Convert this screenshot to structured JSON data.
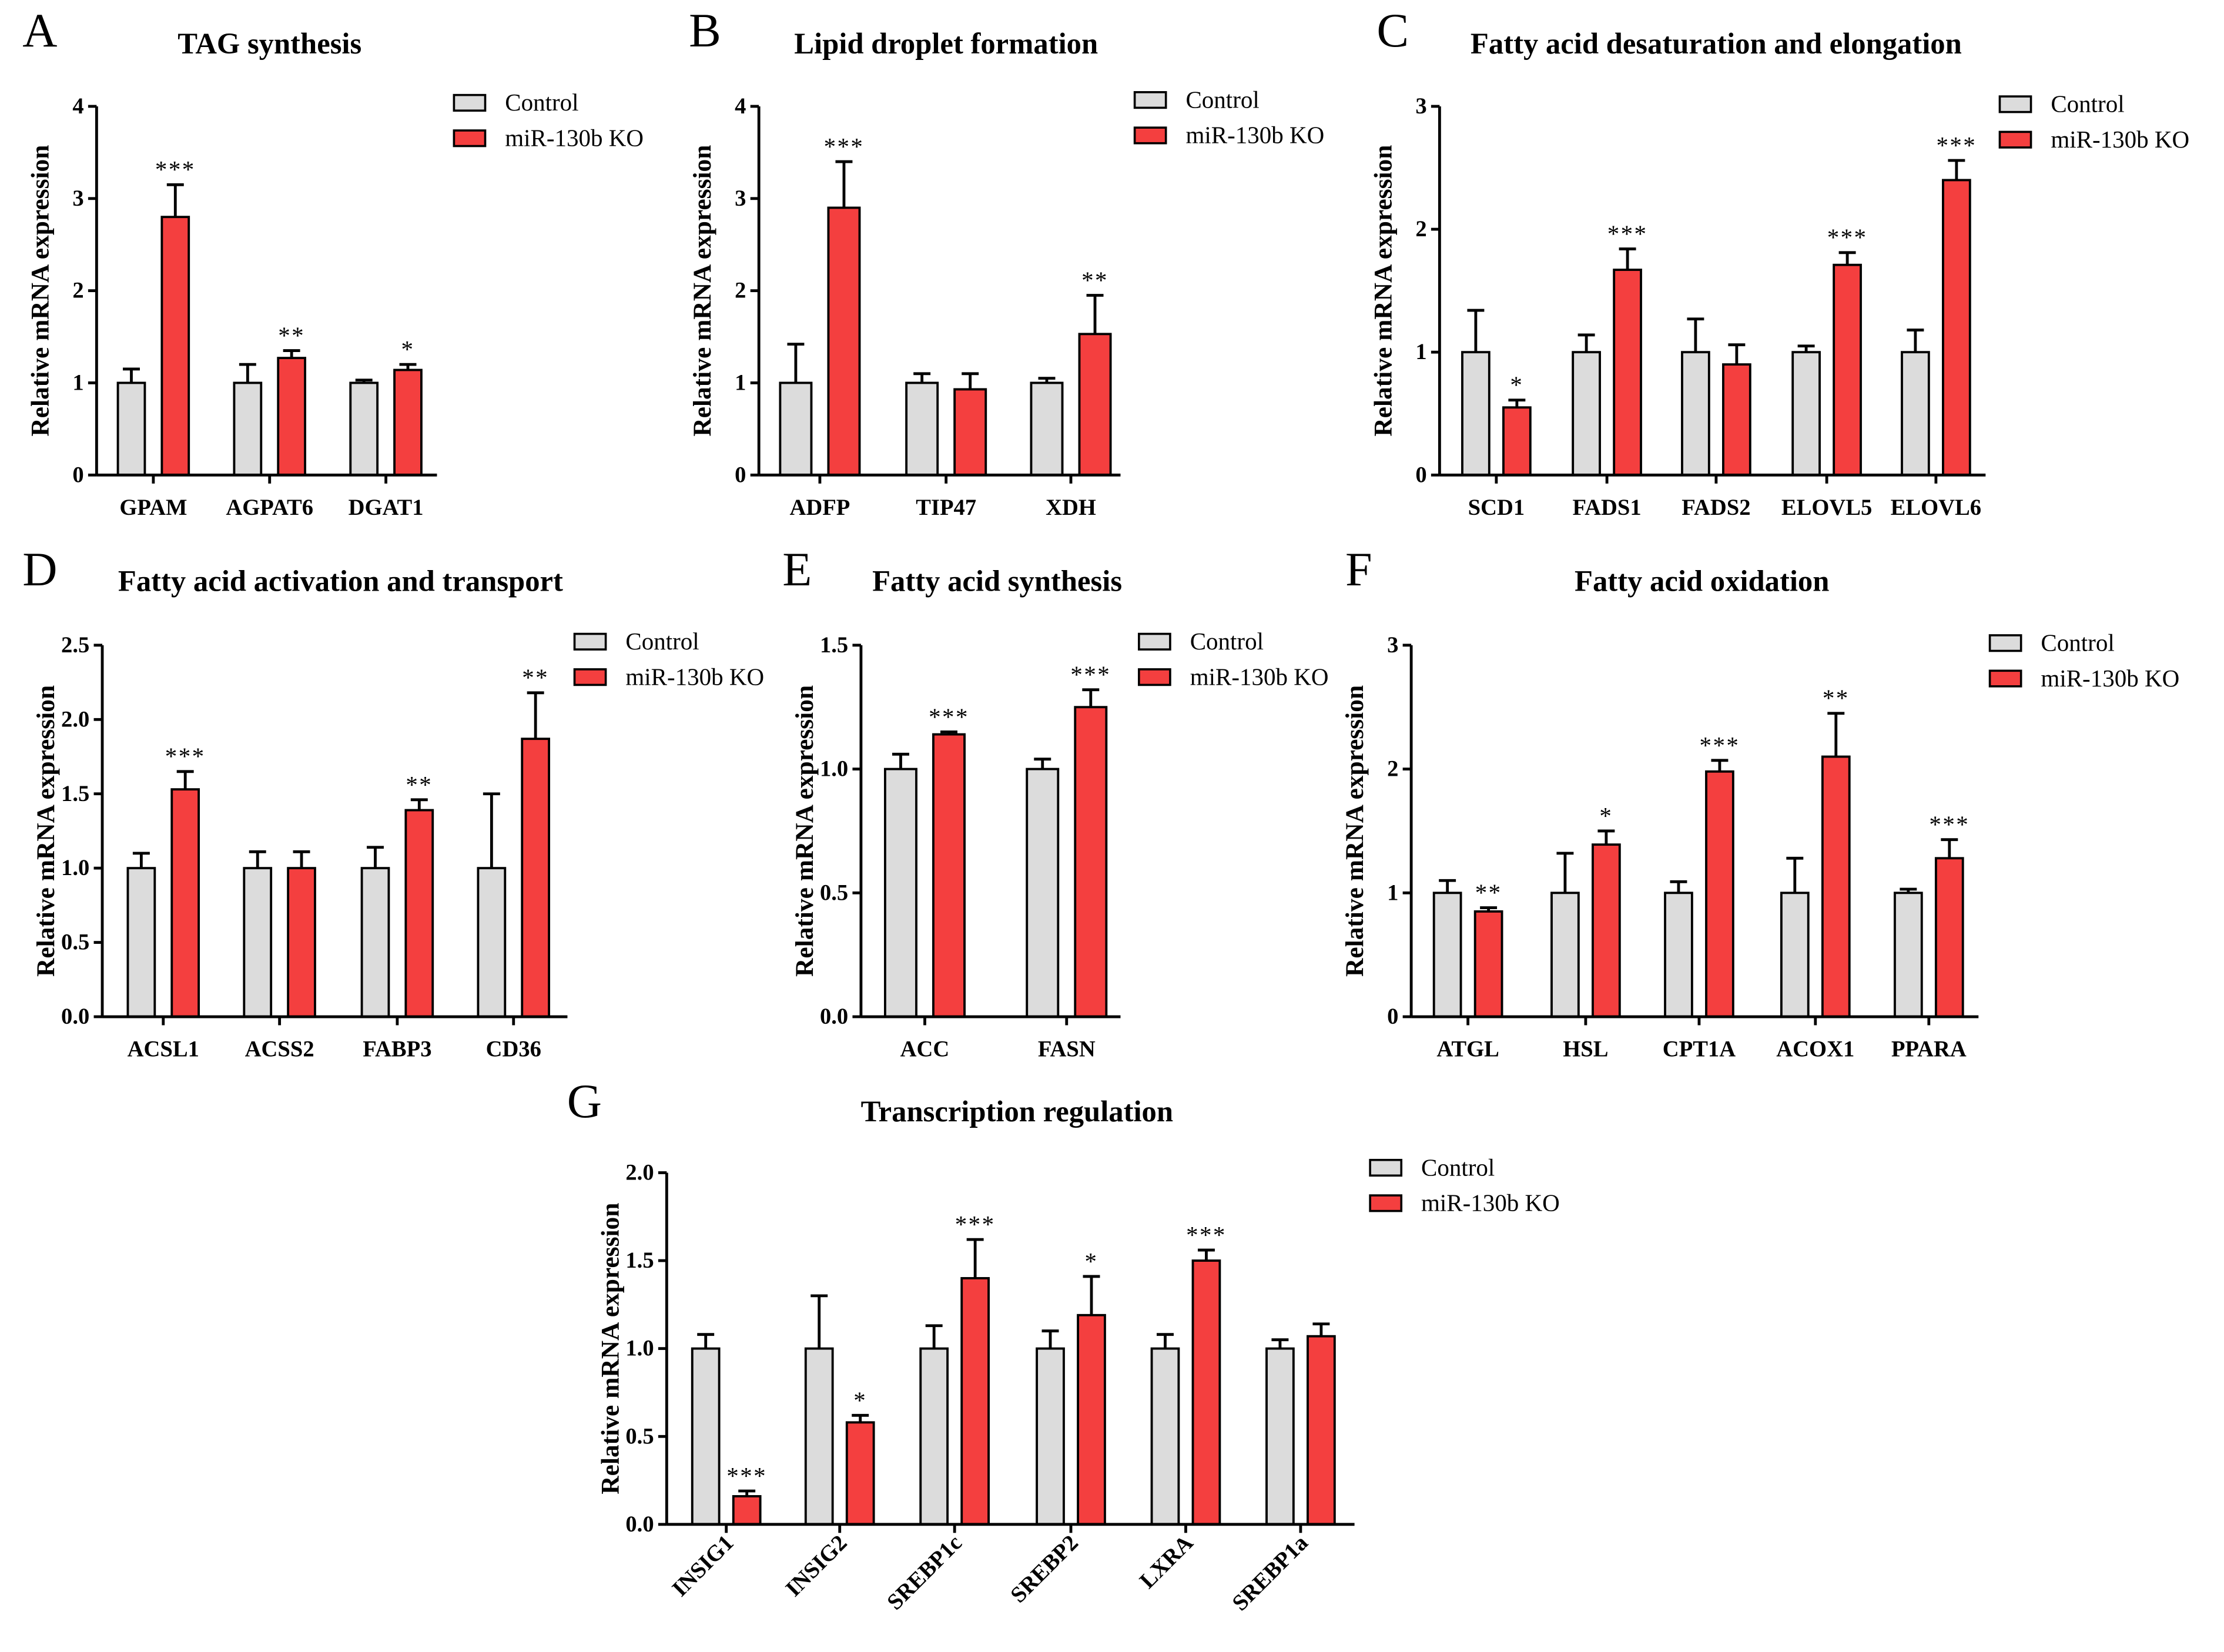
{
  "legend": {
    "control": "Control",
    "ko": "miR-130b KO"
  },
  "colors": {
    "control": "#dcdcdc",
    "ko": "#f43f3f",
    "axis": "#000000"
  },
  "ylabel": "Relative mRNA expression",
  "chart_data": [
    {
      "letter": "A",
      "type": "bar",
      "title": "TAG synthesis",
      "ylabel": "Relative mRNA expression",
      "ylim": [
        0,
        4
      ],
      "ticks": [
        0,
        1,
        2,
        3,
        4
      ],
      "tick_labels": [
        "0",
        "1",
        "2",
        "3",
        "4"
      ],
      "categories": [
        "GPAM",
        "AGPAT6",
        "DGAT1"
      ],
      "series": [
        {
          "name": "Control",
          "values": [
            1,
            1,
            1
          ],
          "errors": [
            0.15,
            0.2,
            0.03
          ]
        },
        {
          "name": "miR-130b KO",
          "values": [
            2.8,
            1.27,
            1.14
          ],
          "errors": [
            0.35,
            0.08,
            0.06
          ]
        }
      ],
      "significance": [
        "***",
        "**",
        "*"
      ]
    },
    {
      "letter": "B",
      "type": "bar",
      "title": "Lipid droplet formation",
      "ylabel": "Relative mRNA expression",
      "ylim": [
        0,
        4
      ],
      "ticks": [
        0,
        1,
        2,
        3,
        4
      ],
      "tick_labels": [
        "0",
        "1",
        "2",
        "3",
        "4"
      ],
      "categories": [
        "ADFP",
        "TIP47",
        "XDH"
      ],
      "series": [
        {
          "name": "Control",
          "values": [
            1,
            1,
            1
          ],
          "errors": [
            0.42,
            0.1,
            0.05
          ]
        },
        {
          "name": "miR-130b KO",
          "values": [
            2.9,
            0.93,
            1.53
          ],
          "errors": [
            0.5,
            0.17,
            0.42
          ]
        }
      ],
      "significance": [
        "***",
        "",
        "**"
      ]
    },
    {
      "letter": "C",
      "type": "bar",
      "title": "Fatty acid desaturation and elongation",
      "ylabel": "Relative mRNA expression",
      "ylim": [
        0,
        3
      ],
      "ticks": [
        0,
        1,
        2,
        3
      ],
      "tick_labels": [
        "0",
        "1",
        "2",
        "3"
      ],
      "categories": [
        "SCD1",
        "FADS1",
        "FADS2",
        "ELOVL5",
        "ELOVL6"
      ],
      "series": [
        {
          "name": "Control",
          "values": [
            1,
            1,
            1,
            1,
            1
          ],
          "errors": [
            0.34,
            0.14,
            0.27,
            0.05,
            0.18
          ]
        },
        {
          "name": "miR-130b KO",
          "values": [
            0.55,
            1.67,
            0.9,
            1.71,
            2.4
          ],
          "errors": [
            0.06,
            0.17,
            0.16,
            0.1,
            0.16
          ]
        }
      ],
      "significance": [
        "*",
        "***",
        "",
        "***",
        "***"
      ]
    },
    {
      "letter": "D",
      "type": "bar",
      "title": "Fatty acid activation and transport",
      "ylabel": "Relative mRNA expression",
      "ylim": [
        0,
        2.5
      ],
      "ticks": [
        0,
        0.5,
        1,
        1.5,
        2,
        2.5
      ],
      "tick_labels": [
        "0.0",
        "0.5",
        "1.0",
        "1.5",
        "2.0",
        "2.5"
      ],
      "categories": [
        "ACSL1",
        "ACSS2",
        "FABP3",
        "CD36"
      ],
      "series": [
        {
          "name": "Control",
          "values": [
            1,
            1,
            1,
            1
          ],
          "errors": [
            0.1,
            0.11,
            0.14,
            0.5
          ]
        },
        {
          "name": "miR-130b KO",
          "values": [
            1.53,
            1.0,
            1.39,
            1.87
          ],
          "errors": [
            0.12,
            0.11,
            0.07,
            0.31
          ]
        }
      ],
      "significance": [
        "***",
        "",
        "**",
        "**"
      ]
    },
    {
      "letter": "E",
      "type": "bar",
      "title": "Fatty acid synthesis",
      "ylabel": "Relative mRNA expression",
      "ylim": [
        0,
        1.5
      ],
      "ticks": [
        0,
        0.5,
        1,
        1.5
      ],
      "tick_labels": [
        "0.0",
        "0.5",
        "1.0",
        "1.5"
      ],
      "categories": [
        "ACC",
        "FASN"
      ],
      "series": [
        {
          "name": "Control",
          "values": [
            1,
            1
          ],
          "errors": [
            0.06,
            0.04
          ]
        },
        {
          "name": "miR-130b KO",
          "values": [
            1.14,
            1.25
          ],
          "errors": [
            0.01,
            0.07
          ]
        }
      ],
      "significance": [
        "***",
        "***"
      ]
    },
    {
      "letter": "F",
      "type": "bar",
      "title": "Fatty acid oxidation",
      "ylabel": "Relative mRNA expression",
      "ylim": [
        0,
        3
      ],
      "ticks": [
        0,
        1,
        2,
        3
      ],
      "tick_labels": [
        "0",
        "1",
        "2",
        "3"
      ],
      "categories": [
        "ATGL",
        "HSL",
        "CPT1A",
        "ACOX1",
        "PPARA"
      ],
      "series": [
        {
          "name": "Control",
          "values": [
            1,
            1,
            1,
            1,
            1
          ],
          "errors": [
            0.1,
            0.32,
            0.09,
            0.28,
            0.03
          ]
        },
        {
          "name": "miR-130b KO",
          "values": [
            0.85,
            1.39,
            1.98,
            2.1,
            1.28
          ],
          "errors": [
            0.03,
            0.11,
            0.09,
            0.35,
            0.15
          ]
        }
      ],
      "significance": [
        "**",
        "*",
        "***",
        "**",
        "***"
      ]
    },
    {
      "letter": "G",
      "type": "bar",
      "title": "Transcription regulation",
      "ylabel": "Relative mRNA expression",
      "ylim": [
        0,
        2
      ],
      "ticks": [
        0,
        0.5,
        1,
        1.5,
        2
      ],
      "tick_labels": [
        "0.0",
        "0.5",
        "1.0",
        "1.5",
        "2.0"
      ],
      "categories": [
        "INSIG1",
        "INSIG2",
        "SREBP1c",
        "SREBP2",
        "LXRA",
        "SREBP1a"
      ],
      "series": [
        {
          "name": "Control",
          "values": [
            1,
            1,
            1,
            1,
            1,
            1
          ],
          "errors": [
            0.08,
            0.3,
            0.13,
            0.1,
            0.08,
            0.05
          ]
        },
        {
          "name": "miR-130b KO",
          "values": [
            0.16,
            0.58,
            1.4,
            1.19,
            1.5,
            1.07
          ],
          "errors": [
            0.03,
            0.04,
            0.22,
            0.22,
            0.06,
            0.07
          ]
        }
      ],
      "significance": [
        "***",
        "*",
        "***",
        "*",
        "***",
        ""
      ]
    }
  ]
}
